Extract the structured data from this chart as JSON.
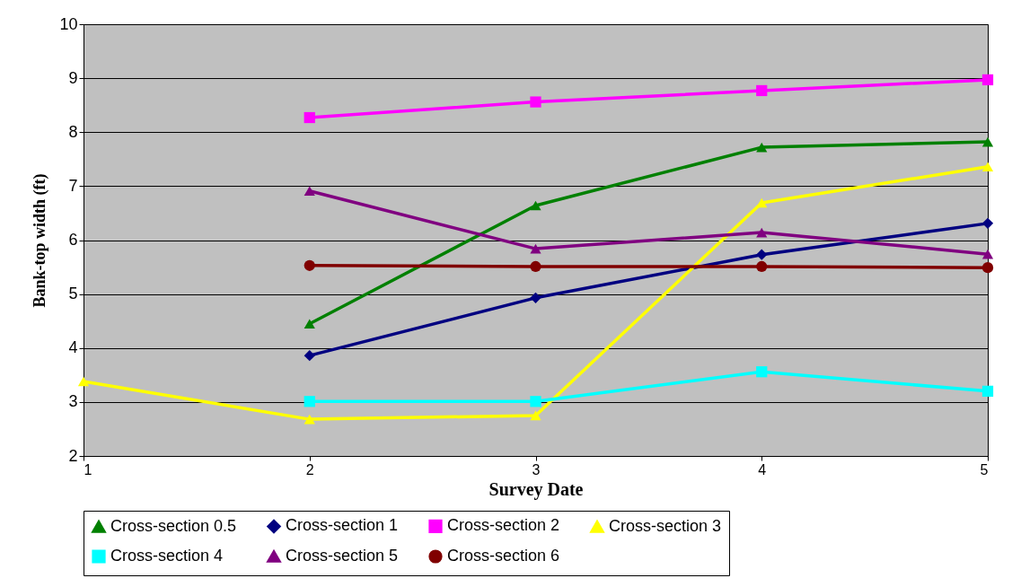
{
  "chart_data": {
    "type": "line",
    "xlabel": "Survey Date",
    "ylabel": "Bank-top width (ft)",
    "x": [
      1,
      2,
      3,
      4,
      5
    ],
    "xlim": [
      1,
      5
    ],
    "xticks": [
      1,
      2,
      3,
      4,
      5
    ],
    "ylim": [
      2,
      10
    ],
    "yticks": [
      2,
      3,
      4,
      5,
      6,
      7,
      8,
      9,
      10
    ],
    "grid": "y",
    "legend": "bottom",
    "line_style": "solid",
    "series": [
      {
        "name": "Cross-section 0.5",
        "color": "#008000",
        "marker": "triangle",
        "values": [
          null,
          4.45,
          6.64,
          7.72,
          7.82
        ]
      },
      {
        "name": "Cross-section 1",
        "color": "#000080",
        "marker": "diamond",
        "values": [
          null,
          3.86,
          4.93,
          5.73,
          6.31
        ]
      },
      {
        "name": "Cross-section 2",
        "color": "#ff00ff",
        "marker": "square",
        "values": [
          null,
          8.27,
          8.56,
          8.77,
          8.97
        ]
      },
      {
        "name": "Cross-section 3",
        "color": "#ffff00",
        "marker": "triangle",
        "values": [
          3.38,
          2.68,
          2.75,
          6.69,
          7.36
        ]
      },
      {
        "name": "Cross-section 4",
        "color": "#00ffff",
        "marker": "square",
        "values": [
          null,
          3.01,
          3.01,
          3.56,
          3.2
        ]
      },
      {
        "name": "Cross-section 5",
        "color": "#800080",
        "marker": "triangle",
        "values": [
          null,
          6.91,
          5.84,
          6.14,
          5.74
        ]
      },
      {
        "name": "Cross-section 6",
        "color": "#800000",
        "marker": "circle",
        "values": [
          null,
          5.53,
          5.51,
          5.51,
          5.49
        ]
      }
    ]
  }
}
